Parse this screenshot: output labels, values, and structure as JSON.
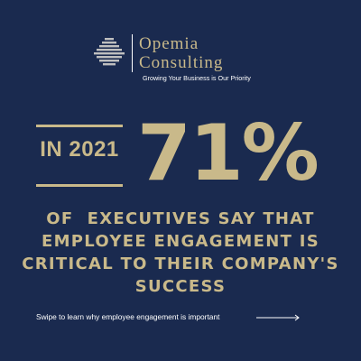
{
  "colors": {
    "background": "#1a2a4f",
    "accent_gold": "#c9b98a",
    "text_white": "#ffffff"
  },
  "logo": {
    "icon": "stacked-bars-logo-icon",
    "name_line1": "Opemia",
    "name_line2": "Consulting",
    "tagline": "Growing Your Business is Our Priority"
  },
  "stat": {
    "year_label": "IN 2021",
    "percentage": "71%"
  },
  "headline": "OF  EXECUTIVES SAY THAT\nEMPLOYEE ENGAGEMENT IS\nCRITICAL TO THEIR COMPANY'S\nSUCCESS",
  "footer": {
    "swipe_text": "Swipe to learn why employee engagement is important",
    "arrow_icon": "right-arrow-icon"
  }
}
